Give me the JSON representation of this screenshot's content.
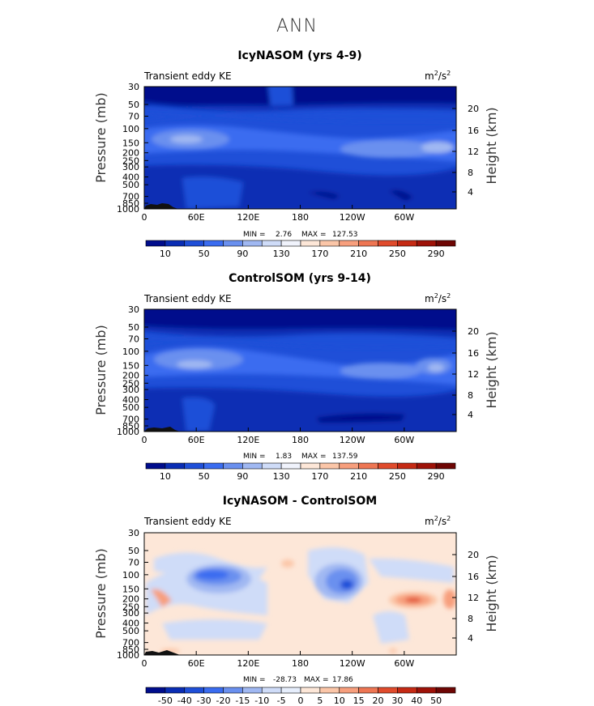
{
  "page": {
    "suptitle": "ANN"
  },
  "chart_data": [
    {
      "type": "heatmap",
      "title": "IcyNASOM (yrs 4-9)",
      "left_label": "Transient eddy KE",
      "units_base": "m",
      "units_exp1": "2",
      "units_mid": "/s",
      "units_exp2": "2",
      "ylabel": "Pressure (mb)",
      "ylabel_right": "Height (km)",
      "y_ticks": [
        "30",
        "50",
        "70",
        "100",
        "150",
        "200",
        "250",
        "300",
        "400",
        "500",
        "700",
        "850",
        "1000"
      ],
      "y_ticks_right": [
        "20",
        "16",
        "12",
        "8",
        "4"
      ],
      "x_ticks": [
        "0",
        "60E",
        "120E",
        "180",
        "120W",
        "60W"
      ],
      "min_label": "MIN =",
      "min_value": "2.76",
      "max_label": "MAX =",
      "max_value": "127.53",
      "colorbar_labels": [
        "10",
        "50",
        "90",
        "130",
        "170",
        "210",
        "250",
        "290"
      ],
      "colorbar_colors": [
        "#000d8c",
        "#0a2db4",
        "#1f4fd8",
        "#3a6cf0",
        "#6a90ef",
        "#a0b8f2",
        "#cfdcf8",
        "#f0f3fc",
        "#fde7d8",
        "#fbc6a8",
        "#f79f7d",
        "#ee7653",
        "#e04b2c",
        "#c52a14",
        "#9e1208",
        "#6e0604"
      ]
    },
    {
      "type": "heatmap",
      "title": "ControlSOM (yrs 9-14)",
      "left_label": "Transient eddy KE",
      "units_base": "m",
      "units_exp1": "2",
      "units_mid": "/s",
      "units_exp2": "2",
      "ylabel": "Pressure (mb)",
      "ylabel_right": "Height (km)",
      "y_ticks": [
        "30",
        "50",
        "70",
        "100",
        "150",
        "200",
        "250",
        "300",
        "400",
        "500",
        "700",
        "850",
        "1000"
      ],
      "y_ticks_right": [
        "20",
        "16",
        "12",
        "8",
        "4"
      ],
      "x_ticks": [
        "0",
        "60E",
        "120E",
        "180",
        "120W",
        "60W"
      ],
      "min_label": "MIN =",
      "min_value": "1.83",
      "max_label": "MAX =",
      "max_value": "137.59",
      "colorbar_labels": [
        "10",
        "50",
        "90",
        "130",
        "170",
        "210",
        "250",
        "290"
      ],
      "colorbar_colors": [
        "#000d8c",
        "#0a2db4",
        "#1f4fd8",
        "#3a6cf0",
        "#6a90ef",
        "#a0b8f2",
        "#cfdcf8",
        "#f0f3fc",
        "#fde7d8",
        "#fbc6a8",
        "#f79f7d",
        "#ee7653",
        "#e04b2c",
        "#c52a14",
        "#9e1208",
        "#6e0604"
      ]
    },
    {
      "type": "heatmap",
      "title": "IcyNASOM - ControlSOM",
      "left_label": "Transient eddy KE",
      "units_base": "m",
      "units_exp1": "2",
      "units_mid": "/s",
      "units_exp2": "2",
      "ylabel": "Pressure (mb)",
      "ylabel_right": "Height (km)",
      "y_ticks": [
        "30",
        "50",
        "70",
        "100",
        "150",
        "200",
        "250",
        "300",
        "400",
        "500",
        "700",
        "850",
        "1000"
      ],
      "y_ticks_right": [
        "20",
        "16",
        "12",
        "8",
        "4"
      ],
      "x_ticks": [
        "0",
        "60E",
        "120E",
        "180",
        "120W",
        "60W"
      ],
      "min_label": "MIN =",
      "min_value": "-28.73",
      "max_label": "MAX =",
      "max_value": "17.86",
      "colorbar_labels": [
        "-50",
        "-40",
        "-30",
        "-20",
        "-15",
        "-10",
        "-5",
        "0",
        "5",
        "10",
        "15",
        "20",
        "30",
        "40",
        "50"
      ],
      "colorbar_colors": [
        "#000d8c",
        "#0a2db4",
        "#1f4fd8",
        "#3a6cf0",
        "#6a90ef",
        "#a0b8f2",
        "#cfdcf8",
        "#e6eefc",
        "#fde7d8",
        "#fbc6a8",
        "#f79f7d",
        "#ee7653",
        "#e04b2c",
        "#c52a14",
        "#9e1208",
        "#6e0604"
      ]
    }
  ]
}
